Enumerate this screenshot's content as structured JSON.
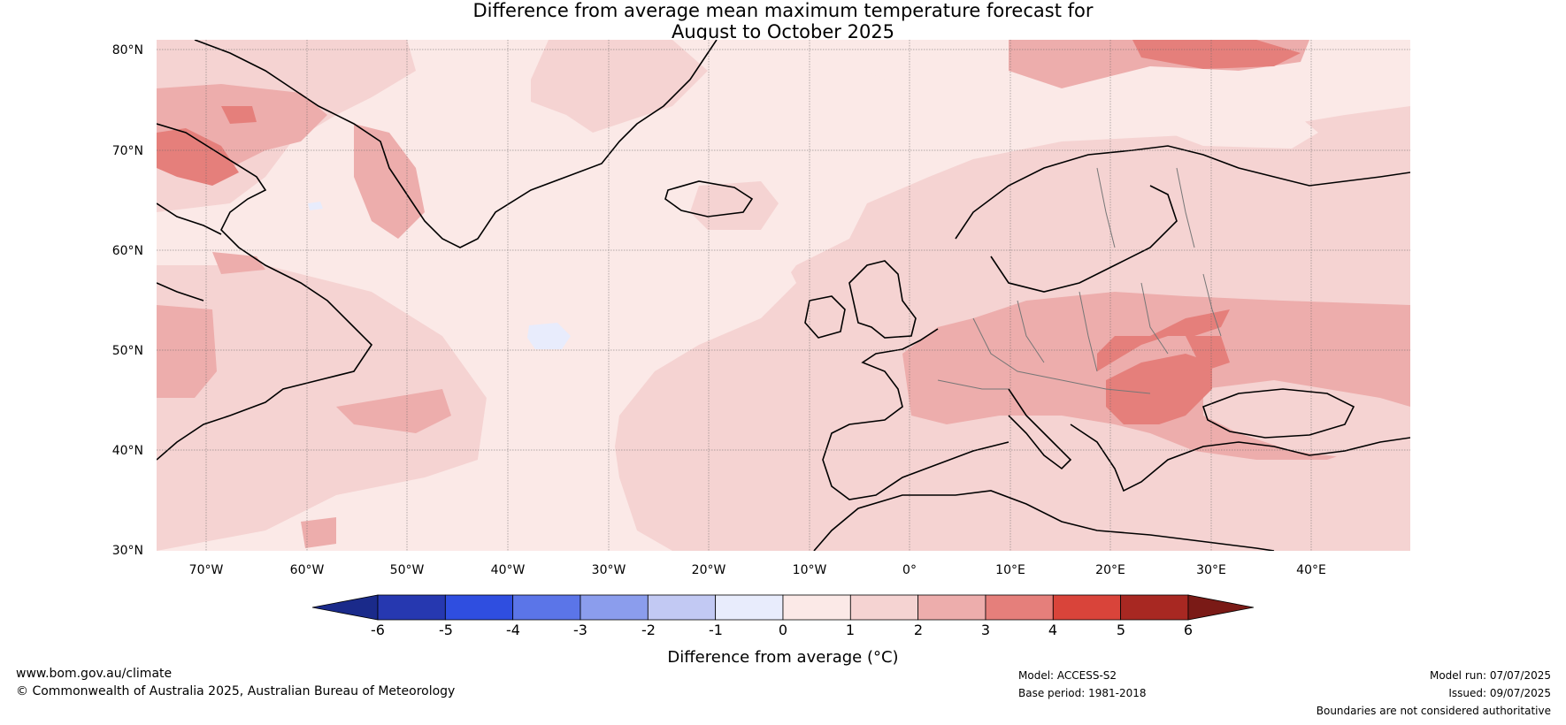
{
  "title": {
    "line1": "Difference from average mean maximum temperature forecast for",
    "line2": "August to October 2025"
  },
  "map": {
    "lat_labels": [
      "80°N",
      "70°N",
      "60°N",
      "50°N",
      "40°N",
      "30°N"
    ],
    "lon_labels": [
      "70°W",
      "60°W",
      "50°W",
      "40°W",
      "30°W",
      "20°W",
      "10°W",
      "0°",
      "10°E",
      "20°E",
      "30°E",
      "40°E"
    ]
  },
  "colorbar": {
    "ticks": [
      "-6",
      "-5",
      "-4",
      "-3",
      "-2",
      "-1",
      "0",
      "1",
      "2",
      "3",
      "4",
      "5",
      "6"
    ],
    "colors": [
      "#1a2a8a",
      "#2638b0",
      "#2f4ee0",
      "#5b75e8",
      "#8b9ded",
      "#c2c9f3",
      "#e8ecfc",
      "#fbe9e7",
      "#f5d3d2",
      "#edadac",
      "#e57f7b",
      "#d9443a",
      "#a82822",
      "#7a1a16"
    ],
    "label": "Difference from average (°C)"
  },
  "footer": {
    "url": "www.bom.gov.au/climate",
    "copyright": "© Commonwealth of Australia 2025, Australian Bureau of Meteorology",
    "model": "Model: ACCESS-S2",
    "base_period": "Base period: 1981-2018",
    "model_run": "Model run: 07/07/2025",
    "issued": "Issued: 09/07/2025",
    "disclaimer": "Boundaries are not considered authoritative"
  }
}
